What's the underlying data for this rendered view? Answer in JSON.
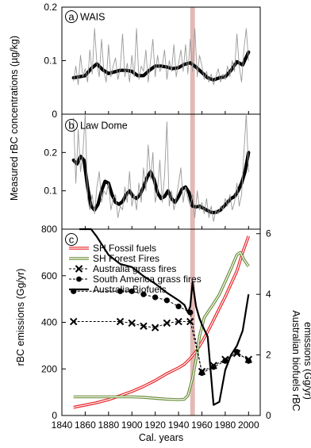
{
  "chart_data": [
    {
      "type": "line",
      "panel_label": "a",
      "title": "WAIS",
      "x_range": [
        1840,
        2010
      ],
      "ylim": [
        0,
        0.2
      ],
      "yticks": [
        0,
        0.1,
        0.2
      ],
      "ytick_labels": [
        "0",
        "0.1",
        "0.2"
      ],
      "series": [
        {
          "role": "smoothed",
          "x": [
            1850,
            1855,
            1860,
            1865,
            1870,
            1875,
            1880,
            1885,
            1890,
            1895,
            1900,
            1905,
            1910,
            1915,
            1920,
            1925,
            1930,
            1935,
            1940,
            1945,
            1950,
            1955,
            1960,
            1965,
            1970,
            1975,
            1980,
            1985,
            1990,
            1995,
            2000
          ],
          "values": [
            0.068,
            0.07,
            0.072,
            0.085,
            0.094,
            0.083,
            0.076,
            0.079,
            0.082,
            0.082,
            0.08,
            0.072,
            0.072,
            0.082,
            0.09,
            0.09,
            0.088,
            0.085,
            0.087,
            0.093,
            0.096,
            0.088,
            0.078,
            0.068,
            0.064,
            0.068,
            0.07,
            0.082,
            0.098,
            0.092,
            0.116
          ]
        },
        {
          "role": "raw",
          "x": [
            1850,
            1852,
            1854,
            1856,
            1858,
            1860,
            1862,
            1864,
            1866,
            1868,
            1870,
            1872,
            1874,
            1876,
            1878,
            1880,
            1882,
            1884,
            1886,
            1888,
            1890,
            1892,
            1894,
            1896,
            1898,
            1900,
            1902,
            1904,
            1906,
            1908,
            1910,
            1912,
            1914,
            1916,
            1918,
            1920,
            1922,
            1924,
            1926,
            1928,
            1930,
            1932,
            1934,
            1936,
            1938,
            1940,
            1942,
            1944,
            1946,
            1948,
            1950,
            1952,
            1954,
            1956,
            1958,
            1960,
            1962,
            1964,
            1966,
            1968,
            1970,
            1972,
            1974,
            1976,
            1978,
            1980,
            1982,
            1984,
            1986,
            1988,
            1990,
            1992,
            1994,
            1996,
            1998,
            2000
          ],
          "values": [
            0.062,
            0.09,
            0.055,
            0.11,
            0.07,
            0.085,
            0.06,
            0.12,
            0.075,
            0.16,
            0.095,
            0.07,
            0.14,
            0.08,
            0.06,
            0.13,
            0.07,
            0.09,
            0.105,
            0.065,
            0.085,
            0.15,
            0.07,
            0.095,
            0.06,
            0.11,
            0.07,
            0.16,
            0.065,
            0.09,
            0.08,
            0.12,
            0.06,
            0.1,
            0.14,
            0.07,
            0.11,
            0.08,
            0.09,
            0.12,
            0.065,
            0.1,
            0.08,
            0.13,
            0.07,
            0.095,
            0.12,
            0.08,
            0.13,
            0.075,
            0.14,
            0.08,
            0.16,
            0.07,
            0.11,
            0.09,
            0.065,
            0.08,
            0.06,
            0.075,
            0.055,
            0.07,
            0.085,
            0.06,
            0.075,
            0.065,
            0.09,
            0.07,
            0.1,
            0.08,
            0.15,
            0.09,
            0.06,
            0.12,
            0.16,
            0.1
          ]
        }
      ]
    },
    {
      "type": "line",
      "panel_label": "b",
      "title": "Law Dome",
      "x_range": [
        1840,
        2010
      ],
      "ylim": [
        0,
        0.3
      ],
      "yticks": [
        0.1,
        0.2
      ],
      "ytick_labels": [
        "0.1",
        "0.2"
      ],
      "series": [
        {
          "role": "smoothed",
          "x": [
            1850,
            1853,
            1856,
            1859,
            1862,
            1865,
            1868,
            1871,
            1874,
            1877,
            1880,
            1883,
            1886,
            1889,
            1892,
            1895,
            1898,
            1901,
            1904,
            1907,
            1910,
            1913,
            1916,
            1919,
            1922,
            1925,
            1928,
            1931,
            1934,
            1937,
            1940,
            1943,
            1946,
            1949,
            1952,
            1955,
            1958,
            1961,
            1964,
            1967,
            1970,
            1973,
            1976,
            1979,
            1982,
            1985,
            1988,
            1991,
            1994,
            1997,
            2000
          ],
          "values": [
            0.18,
            0.17,
            0.19,
            0.18,
            0.11,
            0.06,
            0.05,
            0.065,
            0.1,
            0.125,
            0.12,
            0.09,
            0.07,
            0.065,
            0.072,
            0.09,
            0.1,
            0.085,
            0.08,
            0.09,
            0.11,
            0.135,
            0.15,
            0.13,
            0.095,
            0.08,
            0.085,
            0.1,
            0.08,
            0.07,
            0.085,
            0.105,
            0.11,
            0.095,
            0.06,
            0.058,
            0.06,
            0.055,
            0.05,
            0.045,
            0.043,
            0.045,
            0.05,
            0.06,
            0.07,
            0.08,
            0.085,
            0.1,
            0.12,
            0.15,
            0.2
          ]
        },
        {
          "role": "raw",
          "x": [
            1850,
            1852,
            1854,
            1856,
            1858,
            1860,
            1862,
            1864,
            1866,
            1868,
            1870,
            1872,
            1874,
            1876,
            1878,
            1880,
            1882,
            1884,
            1886,
            1888,
            1890,
            1892,
            1894,
            1896,
            1898,
            1900,
            1902,
            1904,
            1906,
            1908,
            1910,
            1912,
            1914,
            1916,
            1918,
            1920,
            1922,
            1924,
            1926,
            1928,
            1930,
            1932,
            1934,
            1936,
            1938,
            1940,
            1942,
            1944,
            1946,
            1948,
            1950,
            1952,
            1954,
            1956,
            1958,
            1960,
            1962,
            1964,
            1966,
            1968,
            1970,
            1972,
            1974,
            1976,
            1978,
            1980,
            1982,
            1984,
            1986,
            1988,
            1990,
            1992,
            1994,
            1996,
            1998,
            2000
          ],
          "values": [
            0.29,
            0.12,
            0.26,
            0.15,
            0.2,
            0.3,
            0.08,
            0.05,
            0.09,
            0.04,
            0.11,
            0.15,
            0.07,
            0.1,
            0.09,
            0.12,
            0.05,
            0.08,
            0.09,
            0.03,
            0.06,
            0.05,
            0.11,
            0.07,
            0.15,
            0.06,
            0.09,
            0.05,
            0.12,
            0.07,
            0.16,
            0.1,
            0.22,
            0.13,
            0.2,
            0.07,
            0.1,
            0.18,
            0.07,
            0.14,
            0.28,
            0.06,
            0.1,
            0.05,
            0.08,
            0.12,
            0.16,
            0.07,
            0.11,
            0.08,
            0.06,
            0.09,
            0.03,
            0.1,
            0.05,
            0.07,
            0.04,
            0.08,
            0.03,
            0.06,
            0.02,
            0.05,
            0.04,
            0.06,
            0.05,
            0.08,
            0.06,
            0.09,
            0.05,
            0.07,
            0.12,
            0.06,
            0.09,
            0.2,
            0.3,
            0.15
          ]
        }
      ]
    },
    {
      "type": "line",
      "panel_label": "c",
      "xlabel": "Cal. years",
      "ylabel": "rBC emissions (Gg/yr)",
      "y2label": "Australian biofuels  rBC emissions (Gg/yr)",
      "x_range": [
        1840,
        2010
      ],
      "xticks": [
        1840,
        1860,
        1880,
        1900,
        1920,
        1940,
        1960,
        1980,
        2000
      ],
      "ylim": [
        0,
        800
      ],
      "yticks": [
        0,
        200,
        400,
        600,
        800
      ],
      "y2lim": [
        0,
        6.15
      ],
      "y2ticks": [
        0,
        2,
        4,
        6
      ],
      "legend_position": "top-left",
      "series": [
        {
          "name": "SH Fossil fuels",
          "axis": "left",
          "color": "#e8252a",
          "style": "double-line",
          "x": [
            1850,
            1860,
            1870,
            1880,
            1890,
            1900,
            1910,
            1920,
            1930,
            1940,
            1945,
            1950,
            1955,
            1960,
            1965,
            1970,
            1975,
            1980,
            1985,
            1990,
            1995,
            2000
          ],
          "values": [
            35,
            45,
            55,
            68,
            85,
            103,
            125,
            150,
            180,
            205,
            220,
            245,
            275,
            315,
            360,
            410,
            460,
            510,
            565,
            620,
            700,
            770
          ]
        },
        {
          "name": "SH Forest Fires",
          "axis": "left",
          "color": "#6b8e3a",
          "style": "double-line",
          "x": [
            1850,
            1860,
            1870,
            1880,
            1890,
            1900,
            1910,
            1920,
            1930,
            1940,
            1945,
            1948,
            1952,
            1955,
            1958,
            1962,
            1966,
            1970,
            1975,
            1980,
            1985,
            1990,
            1993,
            1996,
            2000
          ],
          "values": [
            80,
            80,
            80,
            80,
            80,
            80,
            78,
            74,
            70,
            68,
            70,
            85,
            160,
            240,
            340,
            420,
            450,
            480,
            520,
            575,
            630,
            690,
            700,
            670,
            640
          ]
        },
        {
          "name": "Australia grass fires",
          "axis": "right",
          "color": "#000000",
          "marker": "x",
          "dashed": true,
          "x": [
            1850,
            1890,
            1900,
            1910,
            1920,
            1930,
            1940,
            1950,
            1960,
            1970,
            1980,
            1990,
            2000
          ],
          "values": [
            3.1,
            3.1,
            3.05,
            2.95,
            2.9,
            3.05,
            3.1,
            3.1,
            1.45,
            1.65,
            1.85,
            2.05,
            1.85
          ]
        },
        {
          "name": "South America grass fires",
          "axis": "right",
          "color": "#000000",
          "marker": "dot",
          "dashed": true,
          "x": [
            1850,
            1890,
            1900,
            1910,
            1920,
            1930,
            1940,
            1950,
            1960,
            1970,
            1980,
            1990,
            2000
          ],
          "values": [
            4.1,
            4.1,
            4.1,
            4.0,
            3.9,
            3.8,
            3.6,
            3.4,
            1.4,
            1.6,
            1.8,
            2.1,
            1.8
          ]
        },
        {
          "name": "Australia Biofuels",
          "axis": "right",
          "color": "#000000",
          "style": "solid-thick",
          "x": [
            1855,
            1865,
            1870,
            1880,
            1890,
            1900,
            1910,
            1920,
            1930,
            1940,
            1945,
            1948,
            1950,
            1952,
            1955,
            1958,
            1960,
            1965,
            1970,
            1975,
            1980,
            1985,
            1990,
            1995,
            2000
          ],
          "values": [
            6.15,
            6.15,
            5.9,
            5.3,
            5.0,
            4.9,
            4.6,
            4.35,
            4.05,
            3.8,
            3.65,
            3.4,
            3.6,
            4.4,
            3.6,
            3.2,
            3.0,
            2.6,
            0.35,
            0.45,
            1.5,
            2.0,
            2.3,
            2.8,
            4.0
          ]
        }
      ]
    }
  ],
  "figure": {
    "ylabel_ab": "Measured rBC concentrations (µg/kg)",
    "highlight_x_range": [
      1950,
      1954
    ],
    "highlight_color": "#d9a09c"
  }
}
